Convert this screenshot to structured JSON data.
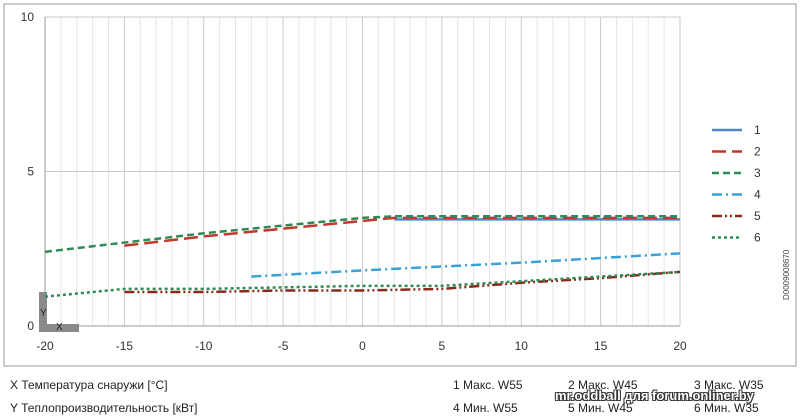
{
  "chart_data": {
    "type": "line",
    "xlim": [
      -20,
      20
    ],
    "ylim": [
      0,
      10
    ],
    "x_ticks": [
      "-20",
      "-15",
      "-10",
      "-5",
      "0",
      "5",
      "10",
      "15",
      "20"
    ],
    "y_ticks": [
      "0",
      "5",
      "10"
    ],
    "grid": true,
    "legend_position": "right",
    "axis_marker_x": "X",
    "axis_marker_y": "Y",
    "series": [
      {
        "name": "1",
        "color": "#4f86c6",
        "dash": "solid",
        "x": [
          2,
          20
        ],
        "y": [
          3.45,
          3.45
        ]
      },
      {
        "name": "2",
        "color": "#c0392b",
        "dash": "long-dash",
        "x": [
          -15,
          -10,
          -5,
          0,
          2,
          20
        ],
        "y": [
          2.6,
          2.9,
          3.15,
          3.4,
          3.5,
          3.5
        ]
      },
      {
        "name": "3",
        "color": "#2e8b57",
        "dash": "dash",
        "x": [
          -20,
          -15,
          -10,
          -5,
          0,
          2,
          20
        ],
        "y": [
          2.4,
          2.7,
          3.0,
          3.25,
          3.5,
          3.55,
          3.55
        ]
      },
      {
        "name": "4",
        "color": "#3aa0d8",
        "dash": "dash-dot",
        "x": [
          -7,
          0,
          10,
          20
        ],
        "y": [
          1.6,
          1.8,
          2.05,
          2.35
        ]
      },
      {
        "name": "5",
        "color": "#8b2a1a",
        "dash": "dash-dot-dot",
        "x": [
          -15,
          -10,
          -5,
          0,
          5,
          10,
          15,
          20
        ],
        "y": [
          1.1,
          1.1,
          1.15,
          1.15,
          1.2,
          1.4,
          1.55,
          1.75
        ]
      },
      {
        "name": "6",
        "color": "#2e8b57",
        "dash": "dot",
        "x": [
          -20,
          -15,
          -10,
          -5,
          0,
          5,
          10,
          15,
          20
        ],
        "y": [
          0.95,
          1.2,
          1.2,
          1.25,
          1.3,
          1.3,
          1.45,
          1.6,
          1.75
        ]
      }
    ]
  },
  "captions": {
    "x_label": "X Температура снаружи  [°C]",
    "y_label": "Y Теплопроизводительность [кВт]"
  },
  "legend_captions": [
    "1 Макс. W55",
    "2 Макс. W45",
    "3 Макс. W35",
    "4 Мин. W55",
    "5 Мин.  W45",
    "6 Мин. W35"
  ],
  "watermark": "mr.oddball для forum.onliner.by",
  "figure_code": "D0009008670"
}
